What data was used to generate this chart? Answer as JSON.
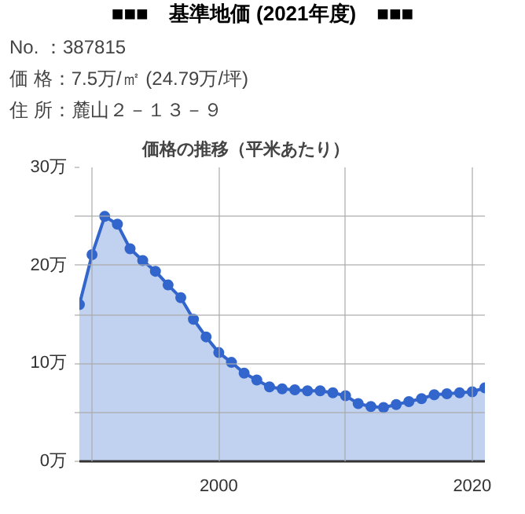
{
  "chart_data": {
    "type": "area",
    "title": "■■■　基準地価 (2021年度)　■■■",
    "subtitle": "価格の推移（平米あたり）",
    "annotations": [
      "No. ：387815",
      "価 格：7.5万/㎡ (24.79万/坪)",
      "住 所：麓山２－１３－９"
    ],
    "x": [
      1989,
      1990,
      1991,
      1992,
      1993,
      1994,
      1995,
      1996,
      1997,
      1998,
      1999,
      2000,
      2001,
      2002,
      2003,
      2004,
      2005,
      2006,
      2007,
      2008,
      2009,
      2010,
      2011,
      2012,
      2013,
      2014,
      2015,
      2016,
      2017,
      2018,
      2019,
      2020,
      2021
    ],
    "series": [
      {
        "color": "#3366cc",
        "values": [
          16.0,
          21.1,
          25.0,
          24.2,
          21.7,
          20.5,
          19.4,
          18.0,
          16.7,
          14.5,
          12.7,
          11.1,
          10.1,
          9.0,
          8.3,
          7.6,
          7.4,
          7.3,
          7.2,
          7.2,
          7.0,
          6.7,
          5.9,
          5.6,
          5.5,
          5.8,
          6.1,
          6.4,
          6.8,
          6.9,
          7.0,
          7.1,
          7.5
        ]
      }
    ],
    "xlim": [
      1989,
      2021
    ],
    "xticks": [
      {
        "value": 1990,
        "label": null
      },
      2000,
      {
        "value": 2010,
        "label": null
      },
      2020
    ],
    "ylim": [
      0,
      30
    ],
    "yticks": [
      {
        "value": 0,
        "label": "0万"
      },
      {
        "value": 5,
        "label": null
      },
      {
        "value": 10,
        "label": "10万"
      },
      {
        "value": 15,
        "label": null
      },
      {
        "value": 20,
        "label": "20万"
      },
      {
        "value": 25,
        "label": null
      },
      {
        "value": 30,
        "label": "30万"
      }
    ],
    "grid": true,
    "marker": "circle"
  }
}
